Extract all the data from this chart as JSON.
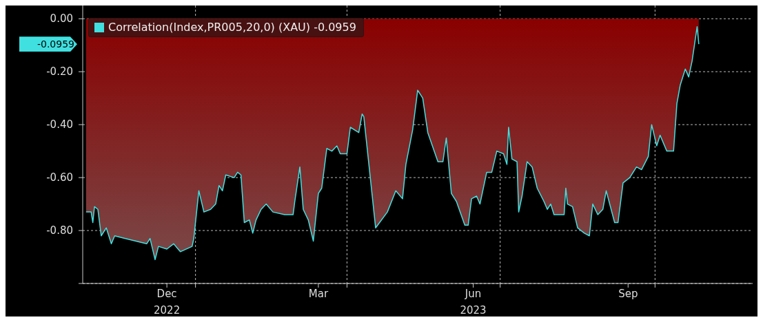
{
  "chart_data": {
    "type": "area",
    "x": [
      "2022-10-28",
      "2022-10-31",
      "2022-11-01",
      "2022-11-02",
      "2022-11-04",
      "2022-11-06",
      "2022-11-09",
      "2022-11-12",
      "2022-11-14",
      "2022-11-20",
      "2022-12-03",
      "2022-12-05",
      "2022-12-08",
      "2022-12-10",
      "2022-12-15",
      "2022-12-19",
      "2022-12-23",
      "2022-12-30",
      "2022-12-31",
      "2023-01-03",
      "2023-01-06",
      "2023-01-10",
      "2023-01-13",
      "2023-01-15",
      "2023-01-17",
      "2023-01-19",
      "2023-01-24",
      "2023-01-26",
      "2023-01-28",
      "2023-01-30",
      "2023-02-02",
      "2023-02-04",
      "2023-02-06",
      "2023-02-09",
      "2023-02-12",
      "2023-02-16",
      "2023-02-23",
      "2023-02-28",
      "2023-03-01",
      "2023-03-04",
      "2023-03-06",
      "2023-03-09",
      "2023-03-12",
      "2023-03-15",
      "2023-03-17",
      "2023-03-20",
      "2023-03-23",
      "2023-03-26",
      "2023-03-28",
      "2023-04-01",
      "2023-04-03",
      "2023-04-08",
      "2023-04-10",
      "2023-04-11",
      "2023-04-18",
      "2023-04-25",
      "2023-04-30",
      "2023-05-04",
      "2023-05-06",
      "2023-05-10",
      "2023-05-13",
      "2023-05-16",
      "2023-05-19",
      "2023-05-25",
      "2023-05-28",
      "2023-05-30",
      "2023-06-02",
      "2023-06-05",
      "2023-06-10",
      "2023-06-12",
      "2023-06-14",
      "2023-06-17",
      "2023-06-19",
      "2023-06-23",
      "2023-06-26",
      "2023-06-29",
      "2023-07-03",
      "2023-07-05",
      "2023-07-06",
      "2023-07-08",
      "2023-07-11",
      "2023-07-12",
      "2023-07-14",
      "2023-07-17",
      "2023-07-20",
      "2023-07-23",
      "2023-07-27",
      "2023-07-29",
      "2023-07-31",
      "2023-08-02",
      "2023-08-08",
      "2023-08-09",
      "2023-08-10",
      "2023-08-13",
      "2023-08-16",
      "2023-08-20",
      "2023-08-23",
      "2023-08-25",
      "2023-08-28",
      "2023-08-31",
      "2023-09-02",
      "2023-09-07",
      "2023-09-09",
      "2023-09-12",
      "2023-09-16",
      "2023-09-20",
      "2023-09-23",
      "2023-09-27",
      "2023-09-29",
      "2023-10-02",
      "2023-10-04",
      "2023-10-08",
      "2023-10-12",
      "2023-10-14",
      "2023-10-16",
      "2023-10-19",
      "2023-10-21",
      "2023-10-23",
      "2023-10-26",
      "2023-10-27"
    ],
    "series": [
      {
        "name": "Correlation(Index,PR005,20,0) (XAU) -0.0959",
        "color": "#40e0e0",
        "values": [
          -0.73,
          -0.73,
          -0.77,
          -0.71,
          -0.72,
          -0.82,
          -0.79,
          -0.85,
          -0.82,
          -0.83,
          -0.85,
          -0.83,
          -0.91,
          -0.86,
          -0.87,
          -0.85,
          -0.88,
          -0.86,
          -0.83,
          -0.65,
          -0.73,
          -0.72,
          -0.7,
          -0.63,
          -0.65,
          -0.59,
          -0.6,
          -0.58,
          -0.59,
          -0.77,
          -0.76,
          -0.81,
          -0.76,
          -0.72,
          -0.7,
          -0.73,
          -0.74,
          -0.74,
          -0.69,
          -0.56,
          -0.72,
          -0.76,
          -0.84,
          -0.66,
          -0.64,
          -0.49,
          -0.5,
          -0.48,
          -0.51,
          -0.51,
          -0.41,
          -0.43,
          -0.36,
          -0.37,
          -0.79,
          -0.73,
          -0.65,
          -0.68,
          -0.55,
          -0.42,
          -0.27,
          -0.3,
          -0.43,
          -0.54,
          -0.54,
          -0.45,
          -0.66,
          -0.69,
          -0.78,
          -0.78,
          -0.68,
          -0.67,
          -0.7,
          -0.58,
          -0.58,
          -0.5,
          -0.51,
          -0.55,
          -0.41,
          -0.53,
          -0.54,
          -0.73,
          -0.67,
          -0.54,
          -0.56,
          -0.64,
          -0.69,
          -0.72,
          -0.7,
          -0.74,
          -0.74,
          -0.64,
          -0.7,
          -0.71,
          -0.79,
          -0.81,
          -0.82,
          -0.7,
          -0.74,
          -0.72,
          -0.65,
          -0.77,
          -0.77,
          -0.62,
          -0.6,
          -0.56,
          -0.57,
          -0.52,
          -0.4,
          -0.48,
          -0.44,
          -0.5,
          -0.5,
          -0.32,
          -0.25,
          -0.19,
          -0.22,
          -0.16,
          -0.03,
          -0.0959
        ]
      }
    ],
    "xlim": [
      "2022-10-26",
      "2023-11-28"
    ],
    "xticks": [
      {
        "value": "2022-12-15",
        "label": "Dec\n2022"
      },
      {
        "value": "2023-01-01",
        "label": null
      },
      {
        "value": "2023-03-15",
        "label": "Mar"
      },
      {
        "value": "2023-04-01",
        "label": null
      },
      {
        "value": "2023-06-15",
        "label": "Jun\n2023"
      },
      {
        "value": "2023-07-01",
        "label": null
      },
      {
        "value": "2023-09-15",
        "label": "Sep"
      },
      {
        "value": "2023-10-01",
        "label": null
      }
    ],
    "ylim": [
      -1.0,
      0.05
    ],
    "yticks": [
      {
        "value": 0,
        "label": "0.00"
      },
      {
        "value": -0.2,
        "label": "-0.20"
      },
      {
        "value": -0.4,
        "label": "-0.40"
      },
      {
        "value": -0.6,
        "label": "-0.60"
      },
      {
        "value": -0.8,
        "label": "-0.80"
      },
      {
        "value": -1.0,
        "label": null
      }
    ],
    "annotations": [
      "-0.0959"
    ],
    "grid": true,
    "legend": "top left"
  }
}
